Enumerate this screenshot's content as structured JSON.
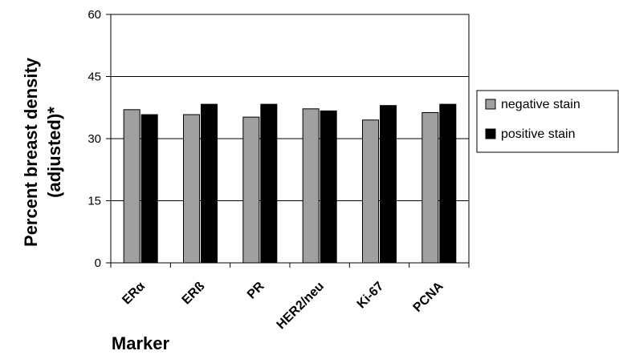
{
  "chart_data": {
    "type": "bar",
    "categories": [
      "ERα",
      "ERß",
      "PR",
      "HER2/neu",
      "Ki-67",
      "PCNA"
    ],
    "series": [
      {
        "name": "negative stain",
        "color": "#a0a0a0",
        "values": [
          37,
          35.8,
          35.2,
          37.2,
          34.5,
          36.3
        ]
      },
      {
        "name": "positive stain",
        "color": "#000000",
        "values": [
          35.8,
          38.3,
          38.3,
          36.7,
          38.0,
          38.3
        ]
      }
    ],
    "title": "",
    "xlabel": "Marker",
    "ylabel": "Percent breast density (adjusted)*",
    "ylabel_lines": [
      "Percent breast density",
      "(adjusted)*"
    ],
    "ylim": [
      0,
      60
    ],
    "yticks": [
      "0",
      "15",
      "30",
      "45",
      "60"
    ],
    "ytick_values": [
      0,
      15,
      30,
      45,
      60
    ],
    "grid": true,
    "legend_position": "right"
  }
}
